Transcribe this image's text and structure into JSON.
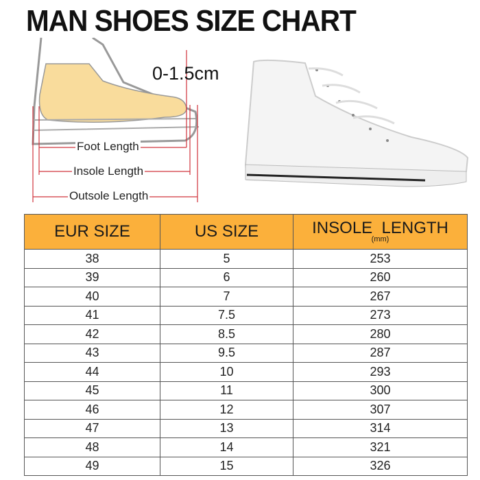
{
  "title": "MAN SHOES SIZE CHART",
  "diagram": {
    "gap_label": "0-1.5cm",
    "foot_length_label": "Foot Length",
    "insole_length_label": "Insole Length",
    "outsole_length_label": "Outsole Length"
  },
  "colors": {
    "header": "#fbb03b",
    "foot": "#f9dc9c",
    "measure_line": "#d0343c"
  },
  "chart_data": {
    "type": "table",
    "columns": [
      "EUR SIZE",
      "US SIZE",
      "INSOLE  LENGTH"
    ],
    "insole_unit": "(mm)",
    "rows": [
      [
        "38",
        "5",
        "253"
      ],
      [
        "39",
        "6",
        "260"
      ],
      [
        "40",
        "7",
        "267"
      ],
      [
        "41",
        "7.5",
        "273"
      ],
      [
        "42",
        "8.5",
        "280"
      ],
      [
        "43",
        "9.5",
        "287"
      ],
      [
        "44",
        "10",
        "293"
      ],
      [
        "45",
        "11",
        "300"
      ],
      [
        "46",
        "12",
        "307"
      ],
      [
        "47",
        "13",
        "314"
      ],
      [
        "48",
        "14",
        "321"
      ],
      [
        "49",
        "15",
        "326"
      ]
    ]
  }
}
